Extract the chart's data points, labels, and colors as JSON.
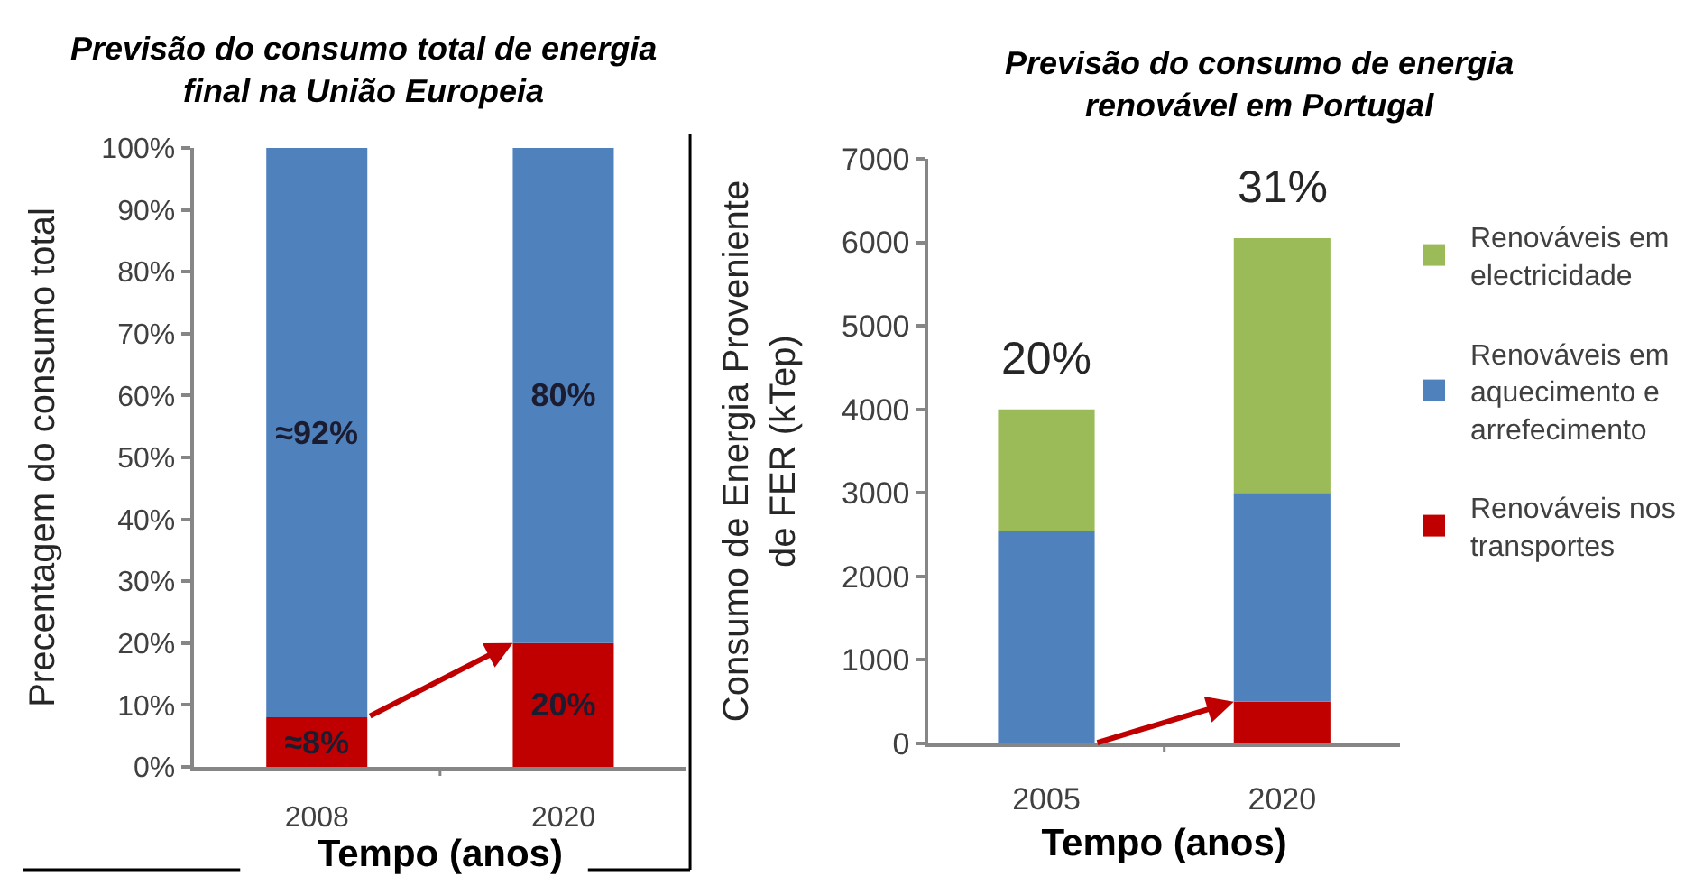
{
  "chart_data": [
    {
      "type": "bar",
      "title": "Previsão do consumo total de energia final na União Europeia",
      "xlabel": "Tempo (anos)",
      "ylabel": "Precentagem do consumo total",
      "categories": [
        "2008",
        "2020"
      ],
      "stacked": true,
      "series": [
        {
          "color": "#c00000",
          "values": [
            8,
            20
          ],
          "value_labels": [
            "≈8%",
            "20%"
          ]
        },
        {
          "color": "#4f81bd",
          "values": [
            92,
            80
          ],
          "value_labels": [
            "≈92%",
            "80%"
          ]
        }
      ],
      "ylim": [
        0,
        100
      ],
      "yticks": [
        {
          "value": 0,
          "label": "0%"
        },
        {
          "value": 10,
          "label": "10%"
        },
        {
          "value": 20,
          "label": "20%"
        },
        {
          "value": 30,
          "label": "30%"
        },
        {
          "value": 40,
          "label": "40%"
        },
        {
          "value": 50,
          "label": "50%"
        },
        {
          "value": 60,
          "label": "60%"
        },
        {
          "value": 70,
          "label": "70%"
        },
        {
          "value": 80,
          "label": "80%"
        },
        {
          "value": 90,
          "label": "90%"
        },
        {
          "value": 100,
          "label": "100%"
        }
      ]
    },
    {
      "type": "bar",
      "title": "Previsão do consumo de energia renovável em Portugal",
      "xlabel": "Tempo (anos)",
      "ylabel": "Consumo de Energia Proveniente de FER (kTep)",
      "categories": [
        "2005",
        "2020"
      ],
      "stacked": true,
      "series": [
        {
          "name": "Renováveis nos transportes",
          "color": "#c00000",
          "values": [
            null,
            500
          ]
        },
        {
          "name": "Renováveis em aquecimento e arrefecimento",
          "color": "#4f81bd",
          "values": [
            2550,
            2500
          ]
        },
        {
          "name": "Renováveis em electricidade",
          "color": "#9bbb59",
          "values": [
            1450,
            3050
          ]
        }
      ],
      "ylim": [
        0,
        7000
      ],
      "yticks": [
        0,
        1000,
        2000,
        3000,
        4000,
        5000,
        6000,
        7000
      ],
      "legend": "right",
      "annotations": [
        {
          "text": "20%",
          "x": "2005",
          "y": 4000
        },
        {
          "text": "31%",
          "x": "2020",
          "y": 6050
        }
      ]
    }
  ]
}
